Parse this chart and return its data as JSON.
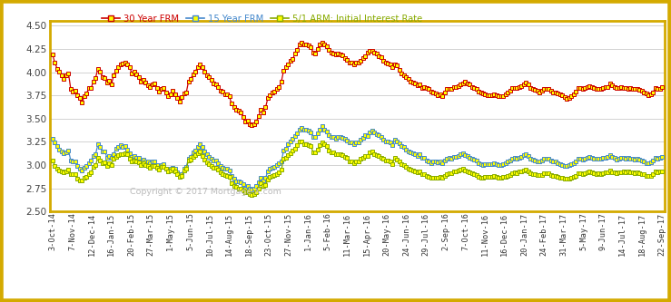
{
  "ylim": [
    2.5,
    4.55
  ],
  "yticks": [
    2.5,
    2.75,
    3.0,
    3.25,
    3.5,
    3.75,
    4.0,
    4.25,
    4.5
  ],
  "background_color": "#ffffff",
  "border_color": "#d4aa00",
  "legend_labels": [
    "30 Year FRM",
    "15 Year FRM",
    "5/1 ARM: Initial Interest Rate"
  ],
  "legend_colors": [
    "#cc0000",
    "#4488cc",
    "#88aa00"
  ],
  "copyright_text": "Copyright © 2017 Mortgage-X.com",
  "x_labels": [
    "3-Oct-14",
    "7-Nov-14",
    "12-Dec-14",
    "16-Jan-15",
    "20-Feb-15",
    "27-Mar-15",
    "1-May-15",
    "5-Jun-15",
    "10-Jul-15",
    "14-Aug-15",
    "18-Sep-15",
    "23-Oct-15",
    "27-Nov-15",
    "1-Jan-16",
    "5-Feb-16",
    "11-Mar-16",
    "15-Apr-16",
    "20-May-16",
    "24-Jun-16",
    "29-Jul-16",
    "2-Sep-16",
    "7-Oct-16",
    "11-Nov-16",
    "16-Dec-16",
    "20-Jan-17",
    "24-Feb-17",
    "31-Mar-17",
    "5-May-17",
    "9-Jun-17",
    "14-Jul-17",
    "18-Aug-17",
    "22-Sep-17"
  ],
  "series_30yr": [
    4.19,
    4.1,
    4.04,
    4.01,
    3.97,
    3.93,
    3.97,
    3.99,
    3.82,
    3.79,
    3.8,
    3.75,
    3.72,
    3.67,
    3.74,
    3.77,
    3.83,
    3.83,
    3.9,
    3.94,
    4.04,
    4.01,
    3.95,
    3.94,
    3.89,
    3.91,
    3.87,
    3.97,
    4.02,
    4.05,
    4.08,
    4.09,
    4.1,
    4.08,
    4.05,
    3.99,
    4.01,
    3.98,
    3.95,
    3.9,
    3.92,
    3.89,
    3.86,
    3.84,
    3.87,
    3.88,
    3.83,
    3.79,
    3.82,
    3.83,
    3.78,
    3.74,
    3.76,
    3.8,
    3.76,
    3.72,
    3.68,
    3.73,
    3.77,
    3.78,
    3.9,
    3.93,
    3.98,
    4.01,
    4.05,
    4.08,
    4.05,
    4.01,
    3.97,
    3.95,
    3.92,
    3.88,
    3.87,
    3.84,
    3.8,
    3.79,
    3.76,
    3.76,
    3.74,
    3.66,
    3.62,
    3.6,
    3.59,
    3.57,
    3.52,
    3.47,
    3.48,
    3.44,
    3.43,
    3.44,
    3.47,
    3.53,
    3.6,
    3.57,
    3.62,
    3.72,
    3.75,
    3.78,
    3.79,
    3.82,
    3.84,
    3.9,
    4.02,
    4.05,
    4.08,
    4.12,
    4.14,
    4.2,
    4.24,
    4.3,
    4.32,
    4.3,
    4.3,
    4.29,
    4.27,
    4.21,
    4.2,
    4.25,
    4.3,
    4.32,
    4.3,
    4.28,
    4.24,
    4.21,
    4.2,
    4.19,
    4.2,
    4.19,
    4.18,
    4.15,
    4.13,
    4.1,
    4.1,
    4.08,
    4.1,
    4.1,
    4.12,
    4.15,
    4.17,
    4.21,
    4.23,
    4.23,
    4.21,
    4.2,
    4.17,
    4.16,
    4.12,
    4.1,
    4.09,
    4.08,
    4.05,
    4.08,
    4.07,
    4.03,
    3.99,
    3.97,
    3.95,
    3.93,
    3.9,
    3.89,
    3.88,
    3.86,
    3.87,
    3.83,
    3.84,
    3.83,
    3.82,
    3.79,
    3.78,
    3.77,
    3.75,
    3.76,
    3.74,
    3.78,
    3.82,
    3.82,
    3.82,
    3.84,
    3.84,
    3.85,
    3.87,
    3.88,
    3.9,
    3.88,
    3.87,
    3.84,
    3.83,
    3.82,
    3.79,
    3.78,
    3.77,
    3.76,
    3.75,
    3.75,
    3.75,
    3.76,
    3.75,
    3.74,
    3.74,
    3.74,
    3.76,
    3.78,
    3.8,
    3.83,
    3.83,
    3.83,
    3.84,
    3.85,
    3.87,
    3.89,
    3.87,
    3.83,
    3.82,
    3.81,
    3.8,
    3.78,
    3.8,
    3.82,
    3.82,
    3.82,
    3.8,
    3.78,
    3.78,
    3.77,
    3.76,
    3.75,
    3.73,
    3.71,
    3.72,
    3.74,
    3.76,
    3.79,
    3.83,
    3.83,
    3.82,
    3.83,
    3.84,
    3.85,
    3.84,
    3.83,
    3.82,
    3.82,
    3.82,
    3.83,
    3.84,
    3.84,
    3.88,
    3.86,
    3.84,
    3.83,
    3.83,
    3.84,
    3.83,
    3.83,
    3.82,
    3.83,
    3.82,
    3.82,
    3.82,
    3.81,
    3.8,
    3.78,
    3.77,
    3.75,
    3.76,
    3.78,
    3.83,
    3.82,
    3.82,
    3.84
  ],
  "series_15yr": [
    3.28,
    3.24,
    3.2,
    3.17,
    3.15,
    3.13,
    3.14,
    3.16,
    3.05,
    3.04,
    3.04,
    2.99,
    2.96,
    2.94,
    2.97,
    2.99,
    3.02,
    3.05,
    3.1,
    3.12,
    3.22,
    3.19,
    3.15,
    3.15,
    3.08,
    3.1,
    3.08,
    3.12,
    3.18,
    3.19,
    3.21,
    3.19,
    3.2,
    3.17,
    3.13,
    3.09,
    3.1,
    3.08,
    3.08,
    3.04,
    3.06,
    3.04,
    3.04,
    3.02,
    3.04,
    3.04,
    3.0,
    2.97,
    3.0,
    3.01,
    2.96,
    2.93,
    2.96,
    2.97,
    2.96,
    2.92,
    2.88,
    2.9,
    2.96,
    2.98,
    3.07,
    3.09,
    3.14,
    3.16,
    3.19,
    3.22,
    3.19,
    3.15,
    3.12,
    3.09,
    3.07,
    3.05,
    3.05,
    3.02,
    2.99,
    2.97,
    2.96,
    2.96,
    2.94,
    2.88,
    2.85,
    2.82,
    2.82,
    2.81,
    2.79,
    2.75,
    2.77,
    2.75,
    2.74,
    2.75,
    2.77,
    2.81,
    2.86,
    2.83,
    2.86,
    2.93,
    2.96,
    2.97,
    2.98,
    3.0,
    3.02,
    3.04,
    3.16,
    3.18,
    3.22,
    3.25,
    3.28,
    3.31,
    3.34,
    3.38,
    3.4,
    3.38,
    3.38,
    3.37,
    3.35,
    3.3,
    3.3,
    3.34,
    3.38,
    3.42,
    3.38,
    3.36,
    3.32,
    3.3,
    3.3,
    3.28,
    3.3,
    3.3,
    3.29,
    3.28,
    3.26,
    3.24,
    3.24,
    3.22,
    3.24,
    3.24,
    3.27,
    3.29,
    3.32,
    3.31,
    3.35,
    3.37,
    3.35,
    3.33,
    3.32,
    3.3,
    3.27,
    3.25,
    3.25,
    3.24,
    3.21,
    3.27,
    3.25,
    3.23,
    3.2,
    3.19,
    3.17,
    3.15,
    3.14,
    3.13,
    3.12,
    3.1,
    3.12,
    3.08,
    3.08,
    3.05,
    3.04,
    3.02,
    3.04,
    3.04,
    3.03,
    3.04,
    3.02,
    3.05,
    3.07,
    3.08,
    3.07,
    3.09,
    3.09,
    3.1,
    3.12,
    3.13,
    3.11,
    3.1,
    3.08,
    3.07,
    3.06,
    3.05,
    3.02,
    3.01,
    3.0,
    3.01,
    3.01,
    3.01,
    3.01,
    3.02,
    3.01,
    3.0,
    3.0,
    3.01,
    3.02,
    3.04,
    3.05,
    3.07,
    3.08,
    3.07,
    3.08,
    3.09,
    3.11,
    3.12,
    3.1,
    3.07,
    3.06,
    3.05,
    3.04,
    3.04,
    3.05,
    3.07,
    3.07,
    3.07,
    3.05,
    3.04,
    3.04,
    3.02,
    3.01,
    3.0,
    2.99,
    2.99,
    3.0,
    3.01,
    3.02,
    3.04,
    3.07,
    3.07,
    3.06,
    3.07,
    3.08,
    3.09,
    3.08,
    3.07,
    3.07,
    3.07,
    3.07,
    3.08,
    3.08,
    3.09,
    3.11,
    3.09,
    3.08,
    3.06,
    3.07,
    3.08,
    3.08,
    3.07,
    3.08,
    3.07,
    3.07,
    3.06,
    3.07,
    3.06,
    3.05,
    3.04,
    3.02,
    3.02,
    3.03,
    3.05,
    3.08,
    3.07,
    3.08,
    3.09
  ],
  "series_arm": [
    3.05,
    2.99,
    2.96,
    2.94,
    2.93,
    2.92,
    2.93,
    2.95,
    2.9,
    2.9,
    2.9,
    2.85,
    2.83,
    2.83,
    2.86,
    2.87,
    2.9,
    2.92,
    2.98,
    3.0,
    3.08,
    3.05,
    3.02,
    3.03,
    2.99,
    3.02,
    3.0,
    3.07,
    3.09,
    3.11,
    3.12,
    3.12,
    3.13,
    3.12,
    3.07,
    3.04,
    3.05,
    3.04,
    3.03,
    3.0,
    3.02,
    3.0,
    2.99,
    2.97,
    2.99,
    2.99,
    2.97,
    2.95,
    2.98,
    2.98,
    2.96,
    2.93,
    2.94,
    2.96,
    2.93,
    2.9,
    2.87,
    2.88,
    2.94,
    2.96,
    3.05,
    3.06,
    3.09,
    3.11,
    3.13,
    3.15,
    3.1,
    3.06,
    3.03,
    3.01,
    2.99,
    2.97,
    2.97,
    2.95,
    2.92,
    2.9,
    2.89,
    2.88,
    2.87,
    2.8,
    2.77,
    2.76,
    2.75,
    2.75,
    2.73,
    2.71,
    2.72,
    2.69,
    2.68,
    2.69,
    2.71,
    2.75,
    2.8,
    2.77,
    2.78,
    2.84,
    2.87,
    2.88,
    2.89,
    2.9,
    2.92,
    2.95,
    3.07,
    3.08,
    3.11,
    3.13,
    3.16,
    3.18,
    3.21,
    3.25,
    3.25,
    3.22,
    3.22,
    3.21,
    3.2,
    3.14,
    3.14,
    3.17,
    3.21,
    3.24,
    3.22,
    3.2,
    3.16,
    3.14,
    3.14,
    3.12,
    3.12,
    3.12,
    3.11,
    3.09,
    3.08,
    3.04,
    3.04,
    3.02,
    3.04,
    3.04,
    3.07,
    3.08,
    3.1,
    3.1,
    3.14,
    3.15,
    3.12,
    3.11,
    3.1,
    3.08,
    3.07,
    3.05,
    3.05,
    3.04,
    3.01,
    3.08,
    3.06,
    3.04,
    3.01,
    3.0,
    2.98,
    2.96,
    2.95,
    2.94,
    2.93,
    2.92,
    2.93,
    2.9,
    2.9,
    2.88,
    2.87,
    2.86,
    2.86,
    2.86,
    2.86,
    2.87,
    2.86,
    2.88,
    2.9,
    2.91,
    2.91,
    2.93,
    2.93,
    2.94,
    2.95,
    2.96,
    2.94,
    2.93,
    2.92,
    2.91,
    2.9,
    2.89,
    2.87,
    2.86,
    2.86,
    2.87,
    2.87,
    2.87,
    2.87,
    2.88,
    2.87,
    2.86,
    2.86,
    2.87,
    2.87,
    2.88,
    2.89,
    2.91,
    2.92,
    2.91,
    2.93,
    2.93,
    2.94,
    2.95,
    2.93,
    2.91,
    2.9,
    2.9,
    2.89,
    2.89,
    2.89,
    2.91,
    2.91,
    2.91,
    2.89,
    2.88,
    2.88,
    2.87,
    2.86,
    2.86,
    2.85,
    2.85,
    2.85,
    2.86,
    2.87,
    2.88,
    2.91,
    2.91,
    2.9,
    2.91,
    2.92,
    2.93,
    2.92,
    2.91,
    2.9,
    2.91,
    2.9,
    2.91,
    2.92,
    2.92,
    2.94,
    2.92,
    2.92,
    2.91,
    2.92,
    2.92,
    2.93,
    2.92,
    2.93,
    2.92,
    2.92,
    2.91,
    2.92,
    2.91,
    2.9,
    2.9,
    2.88,
    2.88,
    2.88,
    2.9,
    2.93,
    2.92,
    2.93,
    2.93
  ]
}
